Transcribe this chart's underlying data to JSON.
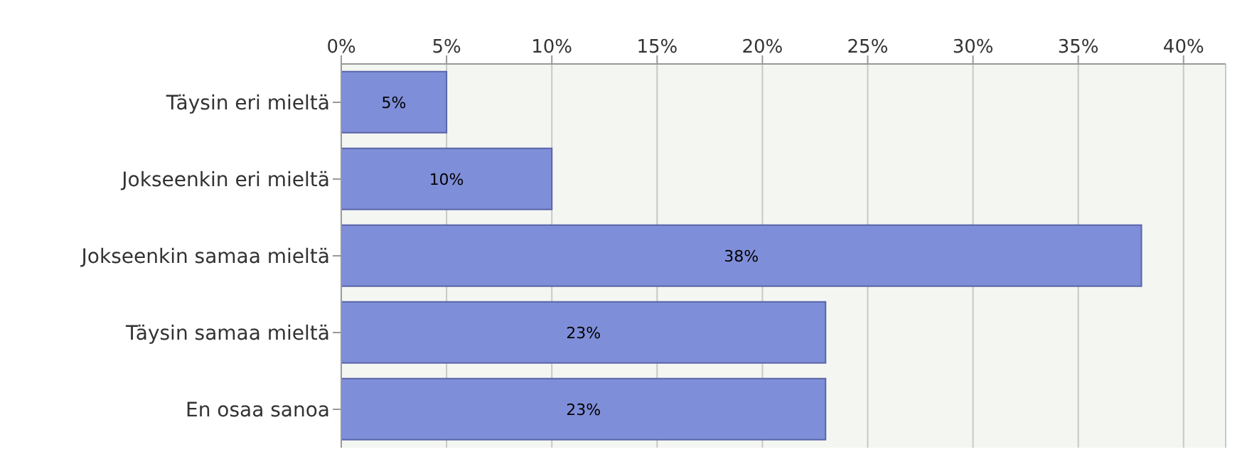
{
  "chart_data": {
    "type": "bar",
    "orientation": "horizontal",
    "categories": [
      "Täysin eri mieltä",
      "Jokseenkin eri mieltä",
      "Jokseenkin samaa mieltä",
      "Täysin samaa mieltä",
      "En osaa sanoa"
    ],
    "values": [
      5,
      10,
      38,
      23,
      23
    ],
    "color": "#7f8ed8",
    "xlim": [
      0,
      42
    ],
    "xticks": [
      {
        "value": 0,
        "label": "0%"
      },
      {
        "value": 5,
        "label": "5%"
      },
      {
        "value": 10,
        "label": "10%"
      },
      {
        "value": 15,
        "label": "15%"
      },
      {
        "value": 20,
        "label": "20%"
      },
      {
        "value": 25,
        "label": "25%"
      },
      {
        "value": 30,
        "label": "30%"
      },
      {
        "value": 35,
        "label": "35%"
      },
      {
        "value": 40,
        "label": "40%"
      }
    ],
    "value_labels": [
      "5%",
      "10%",
      "38%",
      "23%",
      "23%"
    ],
    "grid": "x"
  }
}
